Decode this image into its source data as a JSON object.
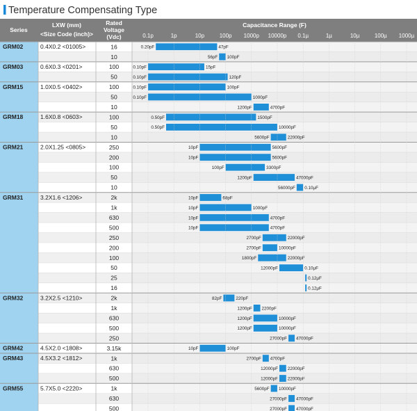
{
  "page": {
    "title": "Temperature Compensating Type",
    "accent_color": "#1a8ad8"
  },
  "header": {
    "series": "Series",
    "lxw": "LXW (mm)",
    "size_code": "<Size Code (inch)>",
    "rated": "Rated",
    "voltage": "Voltage",
    "vdc": "(Vdc)",
    "cap_range": "Capacitance Range (F)"
  },
  "colors": {
    "header_bg": "#7f7f7f",
    "series_bg": "#9fd3f0",
    "bar": "#1f8fd8",
    "row_alt": "#f0f0f0",
    "grid": "#cfcfcf"
  },
  "chart_data": {
    "type": "bar",
    "title": "Capacitance Range (F)",
    "scale": "log",
    "ticks": [
      "0.1p",
      "1p",
      "10p",
      "100p",
      "1000p",
      "10000p",
      "0.1µ",
      "1µ",
      "10µ",
      "100µ",
      "1000µ"
    ],
    "groups": [
      {
        "series": "GRM02",
        "size": "0.4X0.2 <01005>",
        "rows": [
          {
            "v": "16",
            "lo": 0.2,
            "hi": 47,
            "lo_label": "0.20pF",
            "hi_label": "47pF"
          },
          {
            "v": "10",
            "lo": 56,
            "hi": 100,
            "lo_label": "56pF",
            "hi_label": "100pF"
          }
        ]
      },
      {
        "series": "GRM03",
        "size": "0.6X0.3 <0201>",
        "rows": [
          {
            "v": "100",
            "lo": 0.1,
            "hi": 15,
            "lo_label": "0.10pF",
            "hi_label": "15pF"
          },
          {
            "v": "50",
            "lo": 0.1,
            "hi": 120,
            "lo_label": "0.10pF",
            "hi_label": "120pF"
          }
        ]
      },
      {
        "series": "GRM15",
        "size": "1.0X0.5 <0402>",
        "rows": [
          {
            "v": "100",
            "lo": 0.1,
            "hi": 100,
            "lo_label": "0.10pF",
            "hi_label": "100pF"
          },
          {
            "v": "50",
            "lo": 0.1,
            "hi": 1000,
            "lo_label": "0.10pF",
            "hi_label": "1000pF"
          },
          {
            "v": "10",
            "lo": 1200,
            "hi": 4700,
            "lo_label": "1200pF",
            "hi_label": "4700pF"
          }
        ]
      },
      {
        "series": "GRM18",
        "size": "1.6X0.8 <0603>",
        "rows": [
          {
            "v": "100",
            "lo": 0.5,
            "hi": 1500,
            "lo_label": "0.50pF",
            "hi_label": "1500pF"
          },
          {
            "v": "50",
            "lo": 0.5,
            "hi": 10000,
            "lo_label": "0.50pF",
            "hi_label": "10000pF"
          },
          {
            "v": "10",
            "lo": 5600,
            "hi": 22000,
            "lo_label": "5600pF",
            "hi_label": "22000pF"
          }
        ]
      },
      {
        "series": "GRM21",
        "size": "2.0X1.25 <0805>",
        "rows": [
          {
            "v": "250",
            "lo": 10,
            "hi": 5600,
            "lo_label": "10pF",
            "hi_label": "5600pF"
          },
          {
            "v": "200",
            "lo": 10,
            "hi": 5600,
            "lo_label": "10pF",
            "hi_label": "5600pF"
          },
          {
            "v": "100",
            "lo": 100,
            "hi": 3300,
            "lo_label": "100pF",
            "hi_label": "3300pF"
          },
          {
            "v": "50",
            "lo": 1200,
            "hi": 47000,
            "lo_label": "1200pF",
            "hi_label": "47000pF"
          },
          {
            "v": "10",
            "lo": 56000,
            "hi": 100000,
            "lo_label": "56000pF",
            "hi_label": "0.10μF"
          }
        ]
      },
      {
        "series": "GRM31",
        "size": "3.2X1.6 <1206>",
        "rows": [
          {
            "v": "2k",
            "lo": 10,
            "hi": 68,
            "lo_label": "10pF",
            "hi_label": "68pF"
          },
          {
            "v": "1k",
            "lo": 10,
            "hi": 1000,
            "lo_label": "10pF",
            "hi_label": "1000pF"
          },
          {
            "v": "630",
            "lo": 10,
            "hi": 4700,
            "lo_label": "10pF",
            "hi_label": "4700pF"
          },
          {
            "v": "500",
            "lo": 10,
            "hi": 4700,
            "lo_label": "10pF",
            "hi_label": "4700pF"
          },
          {
            "v": "250",
            "lo": 2700,
            "hi": 22000,
            "lo_label": "2700pF",
            "hi_label": "22000pF"
          },
          {
            "v": "200",
            "lo": 2700,
            "hi": 10000,
            "lo_label": "2700pF",
            "hi_label": "10000pF"
          },
          {
            "v": "100",
            "lo": 1800,
            "hi": 22000,
            "lo_label": "1800pF",
            "hi_label": "22000pF"
          },
          {
            "v": "50",
            "lo": 12000,
            "hi": 100000,
            "lo_label": "12000pF",
            "hi_label": "0.10μF"
          },
          {
            "v": "25",
            "lo": 120000,
            "hi": 120000,
            "lo_label": "",
            "hi_label": "0.12μF"
          },
          {
            "v": "16",
            "lo": 120000,
            "hi": 120000,
            "lo_label": "",
            "hi_label": "0.12μF"
          }
        ]
      },
      {
        "series": "GRM32",
        "size": "3.2X2.5 <1210>",
        "rows": [
          {
            "v": "2k",
            "lo": 82,
            "hi": 220,
            "lo_label": "82pF",
            "hi_label": "220pF"
          },
          {
            "v": "1k",
            "lo": 1200,
            "hi": 2200,
            "lo_label": "1200pF",
            "hi_label": "2200pF"
          },
          {
            "v": "630",
            "lo": 1200,
            "hi": 10000,
            "lo_label": "1200pF",
            "hi_label": "10000pF"
          },
          {
            "v": "500",
            "lo": 1200,
            "hi": 10000,
            "lo_label": "1200pF",
            "hi_label": "10000pF"
          },
          {
            "v": "250",
            "lo": 27000,
            "hi": 47000,
            "lo_label": "27000pF",
            "hi_label": "47000pF"
          }
        ]
      },
      {
        "series": "GRM42",
        "size": "4.5X2.0 <1808>",
        "rows": [
          {
            "v": "3.15k",
            "lo": 10,
            "hi": 100,
            "lo_label": "10pF",
            "hi_label": "100pF"
          }
        ]
      },
      {
        "series": "GRM43",
        "size": "4.5X3.2 <1812>",
        "rows": [
          {
            "v": "1k",
            "lo": 2700,
            "hi": 4700,
            "lo_label": "2700pF",
            "hi_label": "4700pF"
          },
          {
            "v": "630",
            "lo": 12000,
            "hi": 22000,
            "lo_label": "12000pF",
            "hi_label": "22000pF"
          },
          {
            "v": "500",
            "lo": 12000,
            "hi": 22000,
            "lo_label": "12000pF",
            "hi_label": "22000pF"
          }
        ]
      },
      {
        "series": "GRM55",
        "size": "5.7X5.0 <2220>",
        "rows": [
          {
            "v": "1k",
            "lo": 5600,
            "hi": 10000,
            "lo_label": "5600pF",
            "hi_label": "10000pF"
          },
          {
            "v": "630",
            "lo": 27000,
            "hi": 47000,
            "lo_label": "27000pF",
            "hi_label": "47000pF"
          },
          {
            "v": "500",
            "lo": 27000,
            "hi": 47000,
            "lo_label": "27000pF",
            "hi_label": "47000pF"
          }
        ]
      }
    ]
  }
}
